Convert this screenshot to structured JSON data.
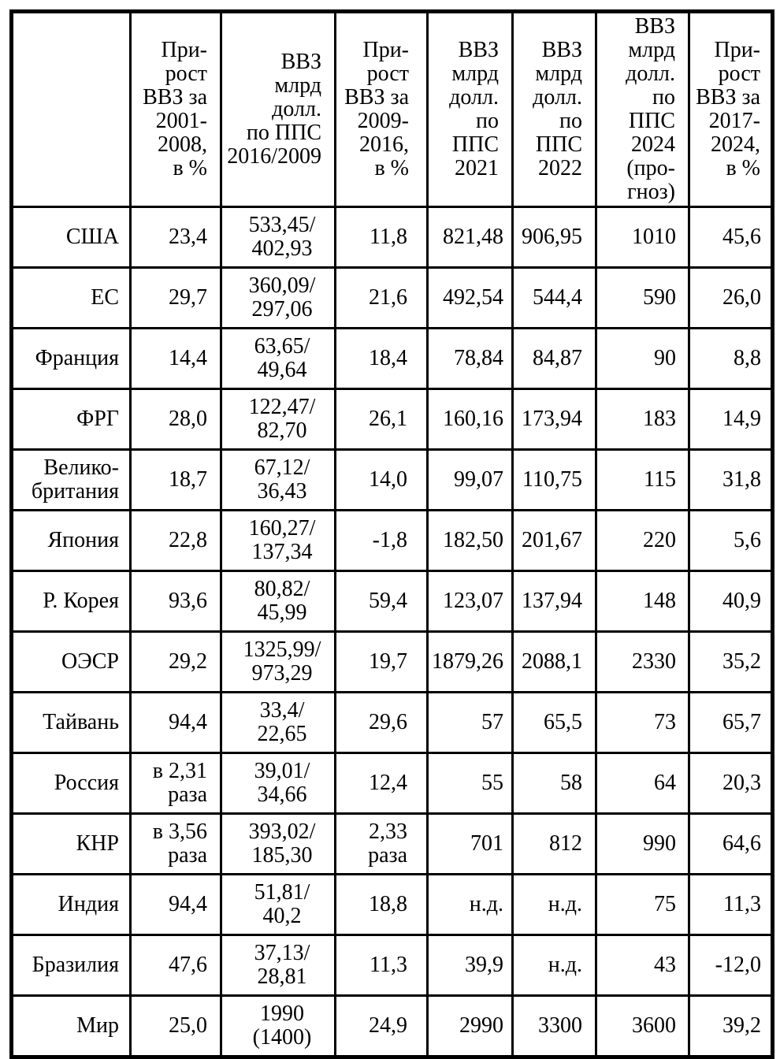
{
  "colors": {
    "border": "#000000",
    "background": "#ffffff",
    "text": "#000000"
  },
  "table": {
    "headers": [
      "",
      "При-\nрост\nВВЗ за\n2001-\n2008,\nв %",
      "ВВЗ\nмлрд\nдолл.\nпо ППС\n2016/2009",
      "При-\nрост\nВВЗ за\n2009-\n2016,\nв %",
      "ВВЗ\nмлрд\nдолл.\nпо\nППС\n2021",
      "ВВЗ\nмлрд\nдолл.\nпо\nППС\n2022",
      "ВВЗ\nмлрд\nдолл.\nпо ППС\n2024\n(про-\nгноз)",
      "При-\nрост\nВВЗ за\n2017-\n2024,\nв %"
    ],
    "rows": [
      {
        "country": "США",
        "cells": [
          "23,4",
          "533,45/\n402,93",
          "11,8",
          "821,48",
          "906,95",
          "1010",
          "45,6"
        ],
        "bold_cols": []
      },
      {
        "country": "ЕС",
        "cells": [
          "29,7",
          "360,09/\n297,06",
          "21,6",
          "492,54",
          "544,4",
          "590",
          "26,0"
        ],
        "bold_cols": []
      },
      {
        "country": "Франция",
        "cells": [
          "14,4",
          "63,65/\n49,64",
          "18,4",
          "78,84",
          "84,87",
          "90",
          "8,8"
        ],
        "bold_cols": []
      },
      {
        "country": "ФРГ",
        "cells": [
          "28,0",
          "122,47/\n82,70",
          "26,1",
          "160,16",
          "173,94",
          "183",
          "14,9"
        ],
        "bold_cols": []
      },
      {
        "country": "Велико-\nбритания",
        "cells": [
          "18,7",
          "67,12/\n36,43",
          "14,0",
          "99,07",
          "110,75",
          "115",
          "31,8"
        ],
        "bold_cols": []
      },
      {
        "country": "Япония",
        "cells": [
          "22,8",
          "160,27/\n137,34",
          "-1,8",
          "182,50",
          "201,67",
          "220",
          "5,6"
        ],
        "bold_cols": []
      },
      {
        "country": "Р. Корея",
        "cells": [
          "93,6",
          "80,82/\n45,99",
          "59,4",
          "123,07",
          "137,94",
          "148",
          "40,9"
        ],
        "bold_cols": []
      },
      {
        "country": "ОЭСР",
        "cells": [
          "29,2",
          "1325,99/\n973,29",
          "19,7",
          "1879,26",
          "2088,1",
          "2330",
          "35,2"
        ],
        "bold_cols": []
      },
      {
        "country": "Тайвань",
        "cells": [
          "94,4",
          "33,4/\n22,65",
          "29,6",
          "57",
          "65,5",
          "73",
          "65,7"
        ],
        "bold_cols": []
      },
      {
        "country": "Россия",
        "cells": [
          "в 2,31\nраза",
          "39,01/\n34,66",
          "12,4",
          "55",
          "58",
          "64",
          "20,3"
        ],
        "bold_cols": [
          5
        ]
      },
      {
        "country": "КНР",
        "cells": [
          "в 3,56\nраза",
          "393,02/\n185,30",
          "2,33\nраза",
          "701",
          "812",
          "990",
          "64,6"
        ],
        "bold_cols": []
      },
      {
        "country": "Индия",
        "cells": [
          "94,4",
          "51,81/\n40,2",
          "18,8",
          "н.д.",
          "н.д.",
          "75",
          "11,3"
        ],
        "bold_cols": []
      },
      {
        "country": "Бразилия",
        "cells": [
          "47,6",
          "37,13/\n28,81",
          "11,3",
          "39,9",
          "н.д.",
          "43",
          "-12,0"
        ],
        "bold_cols": []
      },
      {
        "country": "Мир",
        "cells": [
          "25,0",
          "1990\n(1400)",
          "24,9",
          "2990",
          "3300",
          "3600",
          "39,2"
        ],
        "bold_cols": [
          5
        ]
      }
    ]
  }
}
